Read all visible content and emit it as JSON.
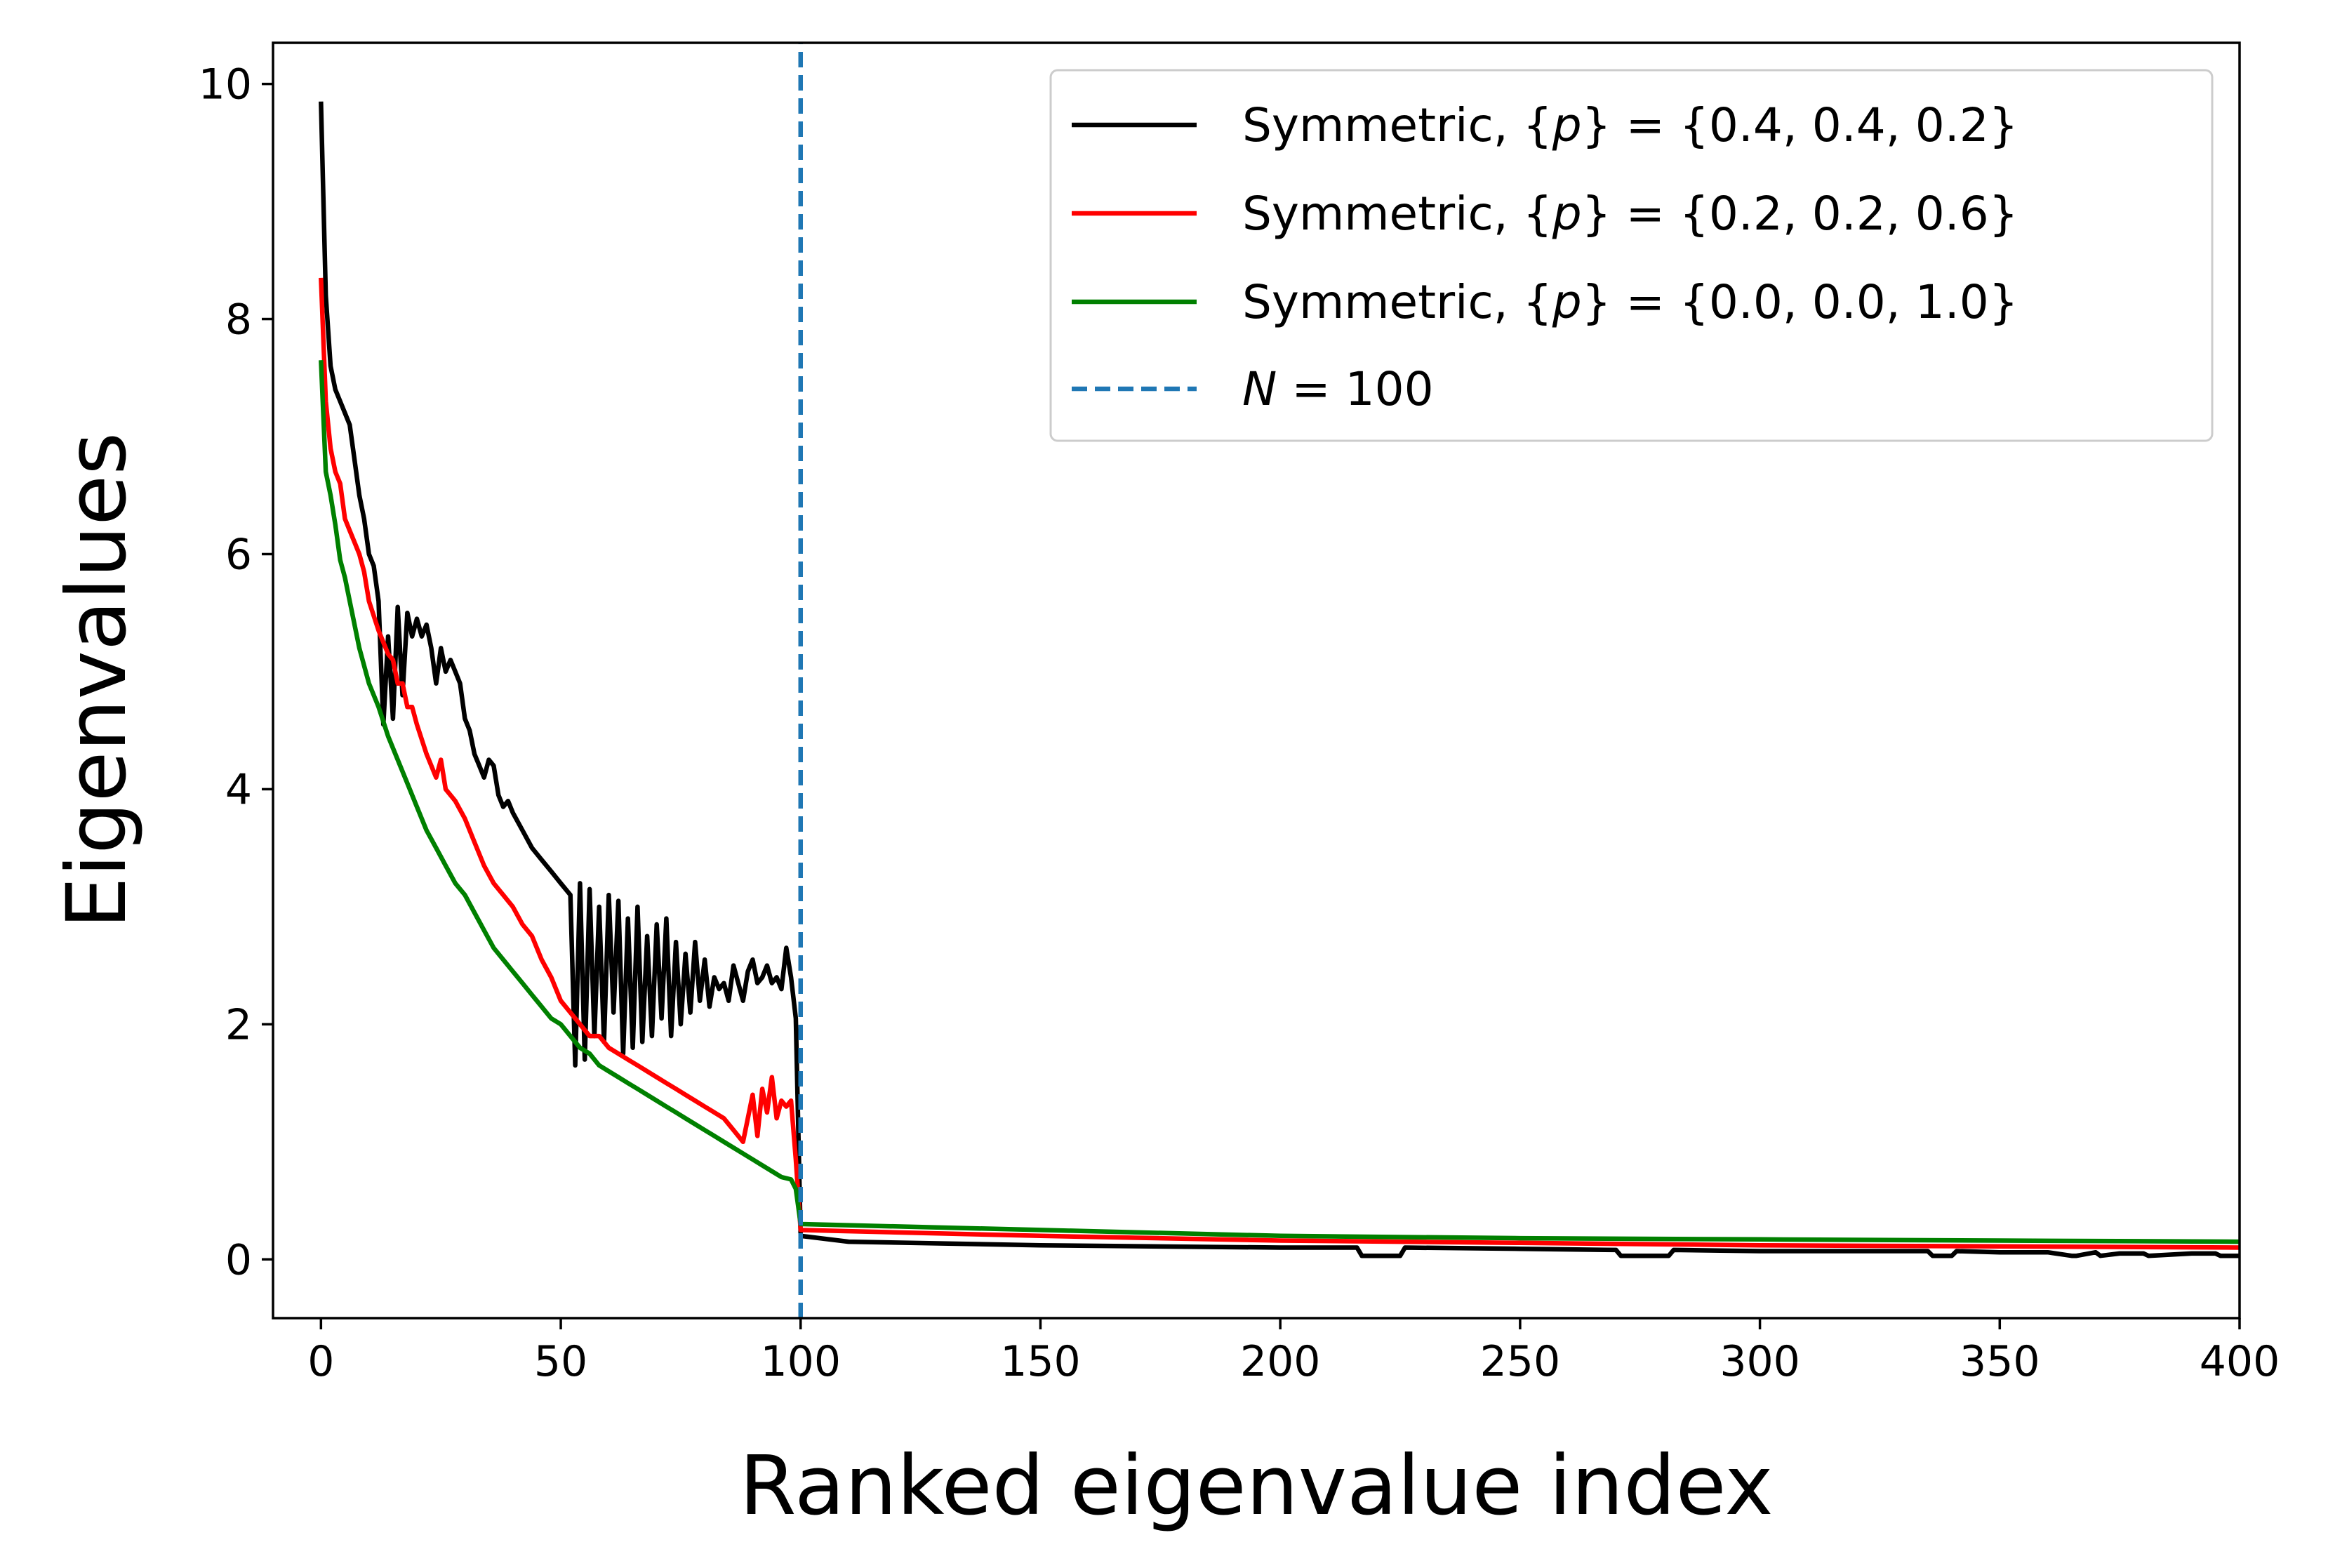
{
  "chart_data": {
    "type": "line",
    "title": "",
    "xlabel": "Ranked eigenvalue index",
    "ylabel": "Eigenvalues",
    "xlim": [
      -10,
      400
    ],
    "ylim": [
      -0.5,
      10.35
    ],
    "xticks": [
      0,
      50,
      100,
      150,
      200,
      250,
      300,
      350,
      400
    ],
    "yticks": [
      0,
      2,
      4,
      6,
      8,
      10
    ],
    "xtick_labels": [
      "0",
      "50",
      "100",
      "150",
      "200",
      "250",
      "300",
      "350",
      "400"
    ],
    "ytick_labels": [
      "0",
      "2",
      "4",
      "6",
      "8",
      "10"
    ],
    "grid": false,
    "legend_position": "top-right",
    "series": [
      {
        "name": "Symmetric, {p} = {0.4, 0.4, 0.2}",
        "color": "#000000",
        "x": [
          0,
          1,
          2,
          3,
          4,
          5,
          6,
          7,
          8,
          9,
          10,
          11,
          12,
          13,
          14,
          15,
          16,
          17,
          18,
          19,
          20,
          21,
          22,
          23,
          24,
          25,
          26,
          27,
          28,
          29,
          30,
          31,
          32,
          33,
          34,
          35,
          36,
          37,
          38,
          39,
          40,
          42,
          44,
          46,
          48,
          50,
          52,
          53,
          54,
          55,
          56,
          57,
          58,
          59,
          60,
          61,
          62,
          63,
          64,
          65,
          66,
          67,
          68,
          69,
          70,
          71,
          72,
          73,
          74,
          75,
          76,
          77,
          78,
          79,
          80,
          81,
          82,
          83,
          84,
          85,
          86,
          87,
          88,
          89,
          90,
          91,
          92,
          93,
          94,
          95,
          96,
          97,
          98,
          99,
          100,
          110,
          150,
          200,
          216,
          217,
          225,
          226,
          250,
          270,
          271,
          281,
          282,
          300,
          335,
          336,
          340,
          341,
          350,
          360,
          365,
          366,
          370,
          371,
          375,
          380,
          381,
          390,
          395,
          396,
          400
        ],
        "values": [
          9.85,
          8.2,
          7.6,
          7.4,
          7.3,
          7.2,
          7.1,
          6.8,
          6.5,
          6.3,
          6.0,
          5.9,
          5.6,
          4.55,
          5.3,
          4.6,
          5.55,
          4.8,
          5.5,
          5.3,
          5.45,
          5.3,
          5.4,
          5.2,
          4.9,
          5.2,
          5.0,
          5.1,
          5.0,
          4.9,
          4.6,
          4.5,
          4.3,
          4.2,
          4.1,
          4.25,
          4.2,
          3.95,
          3.85,
          3.9,
          3.8,
          3.65,
          3.5,
          3.4,
          3.3,
          3.2,
          3.1,
          1.65,
          3.2,
          1.7,
          3.15,
          1.9,
          3.0,
          1.85,
          3.1,
          2.1,
          3.05,
          1.75,
          2.9,
          1.8,
          3.0,
          1.85,
          2.75,
          1.9,
          2.85,
          2.05,
          2.9,
          1.9,
          2.7,
          2.0,
          2.6,
          2.1,
          2.7,
          2.2,
          2.55,
          2.15,
          2.4,
          2.3,
          2.35,
          2.2,
          2.5,
          2.35,
          2.2,
          2.45,
          2.55,
          2.35,
          2.4,
          2.5,
          2.35,
          2.4,
          2.3,
          2.65,
          2.4,
          2.05,
          0.2,
          0.15,
          0.12,
          0.1,
          0.1,
          0.03,
          0.03,
          0.1,
          0.09,
          0.08,
          0.03,
          0.03,
          0.08,
          0.07,
          0.07,
          0.03,
          0.03,
          0.07,
          0.06,
          0.06,
          0.03,
          0.03,
          0.06,
          0.03,
          0.05,
          0.05,
          0.03,
          0.05,
          0.05,
          0.03,
          0.03
        ]
      },
      {
        "name": "Symmetric, {p} = {0.2, 0.2, 0.6}",
        "color": "#ff0000",
        "x": [
          0,
          1,
          2,
          3,
          4,
          5,
          6,
          7,
          8,
          9,
          10,
          12,
          14,
          15,
          16,
          17,
          18,
          19,
          20,
          22,
          24,
          25,
          26,
          28,
          30,
          32,
          34,
          36,
          38,
          40,
          42,
          44,
          46,
          48,
          50,
          52,
          54,
          56,
          58,
          60,
          62,
          64,
          66,
          68,
          70,
          72,
          74,
          76,
          78,
          80,
          82,
          84,
          86,
          88,
          90,
          91,
          92,
          93,
          94,
          95,
          96,
          97,
          98,
          99,
          100,
          150,
          200,
          250,
          300,
          350,
          400
        ],
        "values": [
          8.35,
          7.3,
          6.9,
          6.7,
          6.6,
          6.3,
          6.2,
          6.1,
          6.0,
          5.85,
          5.6,
          5.35,
          5.15,
          5.1,
          4.9,
          4.9,
          4.7,
          4.7,
          4.55,
          4.3,
          4.1,
          4.25,
          4.0,
          3.9,
          3.75,
          3.55,
          3.35,
          3.2,
          3.1,
          3.0,
          2.85,
          2.75,
          2.55,
          2.4,
          2.2,
          2.1,
          2.0,
          1.9,
          1.9,
          1.8,
          1.75,
          1.7,
          1.65,
          1.6,
          1.55,
          1.5,
          1.45,
          1.4,
          1.35,
          1.3,
          1.25,
          1.2,
          1.1,
          1.0,
          1.4,
          1.05,
          1.45,
          1.25,
          1.55,
          1.2,
          1.35,
          1.3,
          1.35,
          0.85,
          0.25,
          0.2,
          0.16,
          0.14,
          0.12,
          0.11,
          0.1
        ]
      },
      {
        "name": "Symmetric, {p} = {0.0, 0.0, 1.0}",
        "color": "#008000",
        "x": [
          0,
          1,
          2,
          3,
          4,
          5,
          6,
          8,
          10,
          12,
          14,
          16,
          18,
          20,
          22,
          24,
          26,
          28,
          30,
          32,
          34,
          36,
          38,
          40,
          42,
          44,
          46,
          48,
          50,
          52,
          54,
          56,
          58,
          60,
          62,
          64,
          66,
          68,
          70,
          72,
          74,
          76,
          78,
          80,
          82,
          84,
          86,
          88,
          90,
          92,
          94,
          96,
          98,
          99,
          100,
          150,
          200,
          250,
          300,
          350,
          400
        ],
        "values": [
          7.65,
          6.7,
          6.5,
          6.25,
          5.95,
          5.8,
          5.6,
          5.2,
          4.9,
          4.7,
          4.45,
          4.25,
          4.05,
          3.85,
          3.65,
          3.5,
          3.35,
          3.2,
          3.1,
          2.95,
          2.8,
          2.65,
          2.55,
          2.45,
          2.35,
          2.25,
          2.15,
          2.05,
          2.0,
          1.9,
          1.8,
          1.75,
          1.65,
          1.6,
          1.55,
          1.5,
          1.45,
          1.4,
          1.35,
          1.3,
          1.25,
          1.2,
          1.15,
          1.1,
          1.05,
          1.0,
          0.95,
          0.9,
          0.85,
          0.8,
          0.75,
          0.7,
          0.68,
          0.6,
          0.3,
          0.25,
          0.2,
          0.18,
          0.17,
          0.16,
          0.15
        ]
      },
      {
        "name": "N = 100",
        "color": "#1f77b4",
        "style": "dashed",
        "x": [
          100,
          100
        ],
        "values": [
          -0.5,
          10.35
        ]
      }
    ]
  }
}
